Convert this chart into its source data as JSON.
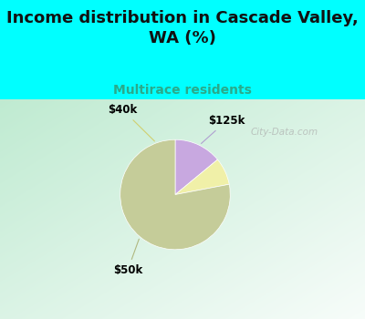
{
  "title": "Income distribution in Cascade Valley,\nWA (%)",
  "subtitle": "Multirace residents",
  "subtitle_color": "#2aaa8a",
  "title_bg_color": "#00ffff",
  "watermark": "City-Data.com",
  "wedge_values": [
    14,
    8,
    78
  ],
  "wedge_colors": [
    "#c8a8e0",
    "#f0f0a8",
    "#c5cc99"
  ],
  "wedge_labels": [
    "$125k",
    "$40k",
    "$50k"
  ],
  "start_angle": 90,
  "title_fontsize": 13,
  "subtitle_fontsize": 10,
  "label_fontsize": 8.5,
  "chart_bg_top": "#c0e8d0",
  "chart_bg_bottom": "#e8f8f0"
}
